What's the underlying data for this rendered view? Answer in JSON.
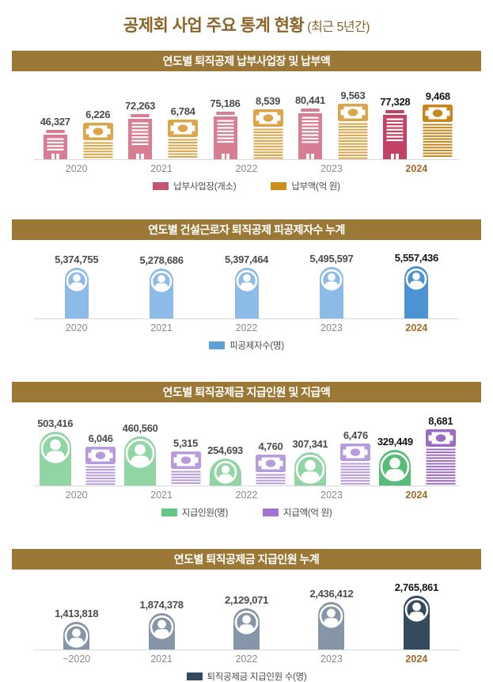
{
  "page_title": {
    "main": "공제회 사업 주요 통계 현황",
    "sub": "(최근 5년간)"
  },
  "colors": {
    "title_color": "#8c6429",
    "section_header_bg": "#9c7836",
    "axis_line": "#d9d9d9",
    "year_label": "#8a8a8a",
    "highlight_year": "#a06a2a",
    "value_label": "#4c4c4c",
    "value_label_highlight": "#141414"
  },
  "chart_data": [
    {
      "type": "pictogram-bar",
      "title": "연도별 퇴직공제 납부사업장 및 납부액",
      "categories": [
        "2020",
        "2021",
        "2022",
        "2023",
        "2024"
      ],
      "highlight_category": "2024",
      "legend_position": "bottom",
      "grid": false,
      "series": [
        {
          "name": "납부사업장(개소)",
          "icon": "building",
          "values": [
            46327,
            72263,
            75186,
            80441,
            77328
          ],
          "labels": [
            "46,327",
            "72,263",
            "75,186",
            "80,441",
            "77,328"
          ],
          "color": "#d87e92",
          "highlight_color": "#c14263",
          "legend_color": "#c4556e"
        },
        {
          "name": "납부액(억 원)",
          "icon": "money",
          "values": [
            6226,
            6784,
            8539,
            9563,
            9468
          ],
          "labels": [
            "6,226",
            "6,784",
            "8,539",
            "9,563",
            "9,468"
          ],
          "color": "#dba64a",
          "highlight_color": "#c9861d",
          "legend_color": "#cd8c1e"
        }
      ]
    },
    {
      "type": "pictogram-bar",
      "title": "연도별 건설근로자 퇴직공제 피공제자수 누계",
      "categories": [
        "2020",
        "2021",
        "2022",
        "2023",
        "2024"
      ],
      "highlight_category": "2024",
      "legend_position": "bottom",
      "grid": false,
      "series": [
        {
          "name": "피공제자수(명)",
          "icon": "person",
          "values": [
            5374755,
            5278686,
            5397464,
            5495597,
            5557436
          ],
          "labels": [
            "5,374,755",
            "5,278,686",
            "5,397,464",
            "5,495,597",
            "5,557,436"
          ],
          "color": "#8cbbe8",
          "highlight_color": "#4b93d3",
          "legend_color": "#5d9fd9"
        }
      ]
    },
    {
      "type": "pictogram-bar",
      "title": "연도별 퇴직공제금 지급인원 및 지급액",
      "categories": [
        "2020",
        "2021",
        "2022",
        "2023",
        "2024"
      ],
      "highlight_category": "2024",
      "legend_position": "bottom",
      "grid": false,
      "series": [
        {
          "name": "지급인원(명)",
          "icon": "person",
          "values": [
            503416,
            460560,
            254693,
            307341,
            329449
          ],
          "labels": [
            "503,416",
            "460,560",
            "254,693",
            "307,341",
            "329,449"
          ],
          "color": "#92d5a5",
          "highlight_color": "#59bd79",
          "legend_color": "#64c584"
        },
        {
          "name": "지급액(억 원)",
          "icon": "money",
          "values": [
            6046,
            5315,
            4760,
            6476,
            8681
          ],
          "labels": [
            "6,046",
            "5,315",
            "4,760",
            "6,476",
            "8,681"
          ],
          "color": "#b79bdb",
          "highlight_color": "#9a6cc4",
          "legend_color": "#a175cb"
        }
      ]
    },
    {
      "type": "pictogram-bar",
      "title": "연도별 퇴직공제금 지급인원 누계",
      "categories": [
        "~2020",
        "2021",
        "2022",
        "2023",
        "2024"
      ],
      "highlight_category": "2024",
      "legend_position": "bottom",
      "grid": false,
      "series": [
        {
          "name": "퇴직공제금 지급인원 수(명)",
          "icon": "person",
          "values": [
            1413818,
            1874378,
            2129071,
            2436412,
            2765861
          ],
          "labels": [
            "1,413,818",
            "1,874,378",
            "2,129,071",
            "2,436,412",
            "2,765,861"
          ],
          "color": "#8795a8",
          "highlight_color": "#35495f",
          "legend_color": "#35495f"
        }
      ]
    }
  ]
}
